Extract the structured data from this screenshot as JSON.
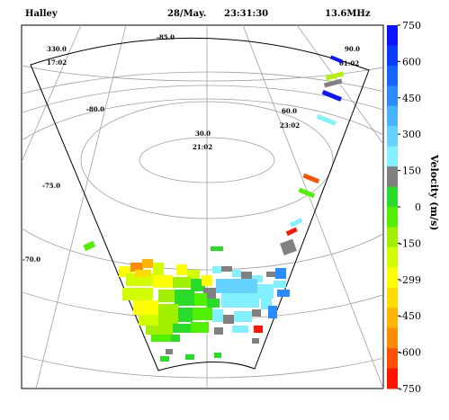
{
  "header": {
    "station": "Halley",
    "date": "28/May.",
    "time": "23:31:30",
    "frequency": "13.6MHz"
  },
  "grid_labels": {
    "lat_85": "-85.0",
    "lat_80": "-80.0",
    "lat_75": "-75.0",
    "lat_70": "-70.0",
    "mlt_330": "330.0",
    "mlt_330_time": "17:02",
    "mlt_30": "30.0",
    "mlt_30_time": "21:02",
    "mlt_60": "60.0",
    "mlt_60_time": "23:02",
    "mlt_90": "90.0",
    "mlt_90_time": "01:02"
  },
  "colorbar": {
    "label": "Velocity (m/s)",
    "ticks": [
      "750",
      "600",
      "450",
      "300",
      "150",
      "0",
      "-150",
      "-299",
      "-450",
      "-600",
      "-750"
    ],
    "colors": [
      "#0a14ff",
      "#0a3cff",
      "#1464ff",
      "#2a8cff",
      "#46b4ff",
      "#64d2ff",
      "#82f0ff",
      "#808080",
      "#2adc2a",
      "#50f000",
      "#a0f000",
      "#d2ff00",
      "#ffff00",
      "#ffdc00",
      "#ffb400",
      "#ff8c00",
      "#ff5000",
      "#ff1400"
    ]
  },
  "chart_data": {
    "type": "heatmap",
    "title": "Halley 28/May. 23:31:30 13.6MHz",
    "colorbar_label": "Velocity (m/s)",
    "clim": [
      -750,
      750
    ],
    "vector_cells": [
      {
        "magnetic_lat": -77.5,
        "mlt_deg": 87,
        "velocity": 720
      },
      {
        "magnetic_lat": -77.8,
        "mlt_deg": 84,
        "velocity": -330
      },
      {
        "magnetic_lat": -78.1,
        "mlt_deg": 82,
        "velocity": 0
      },
      {
        "magnetic_lat": -78.4,
        "mlt_deg": 80,
        "velocity": 740
      },
      {
        "magnetic_lat": -79.2,
        "mlt_deg": 75,
        "velocity": 210
      },
      {
        "magnetic_lat": -76.5,
        "mlt_deg": 70,
        "velocity": -620
      },
      {
        "magnetic_lat": -76.0,
        "mlt_deg": 66,
        "velocity": -270
      }
    ]
  }
}
